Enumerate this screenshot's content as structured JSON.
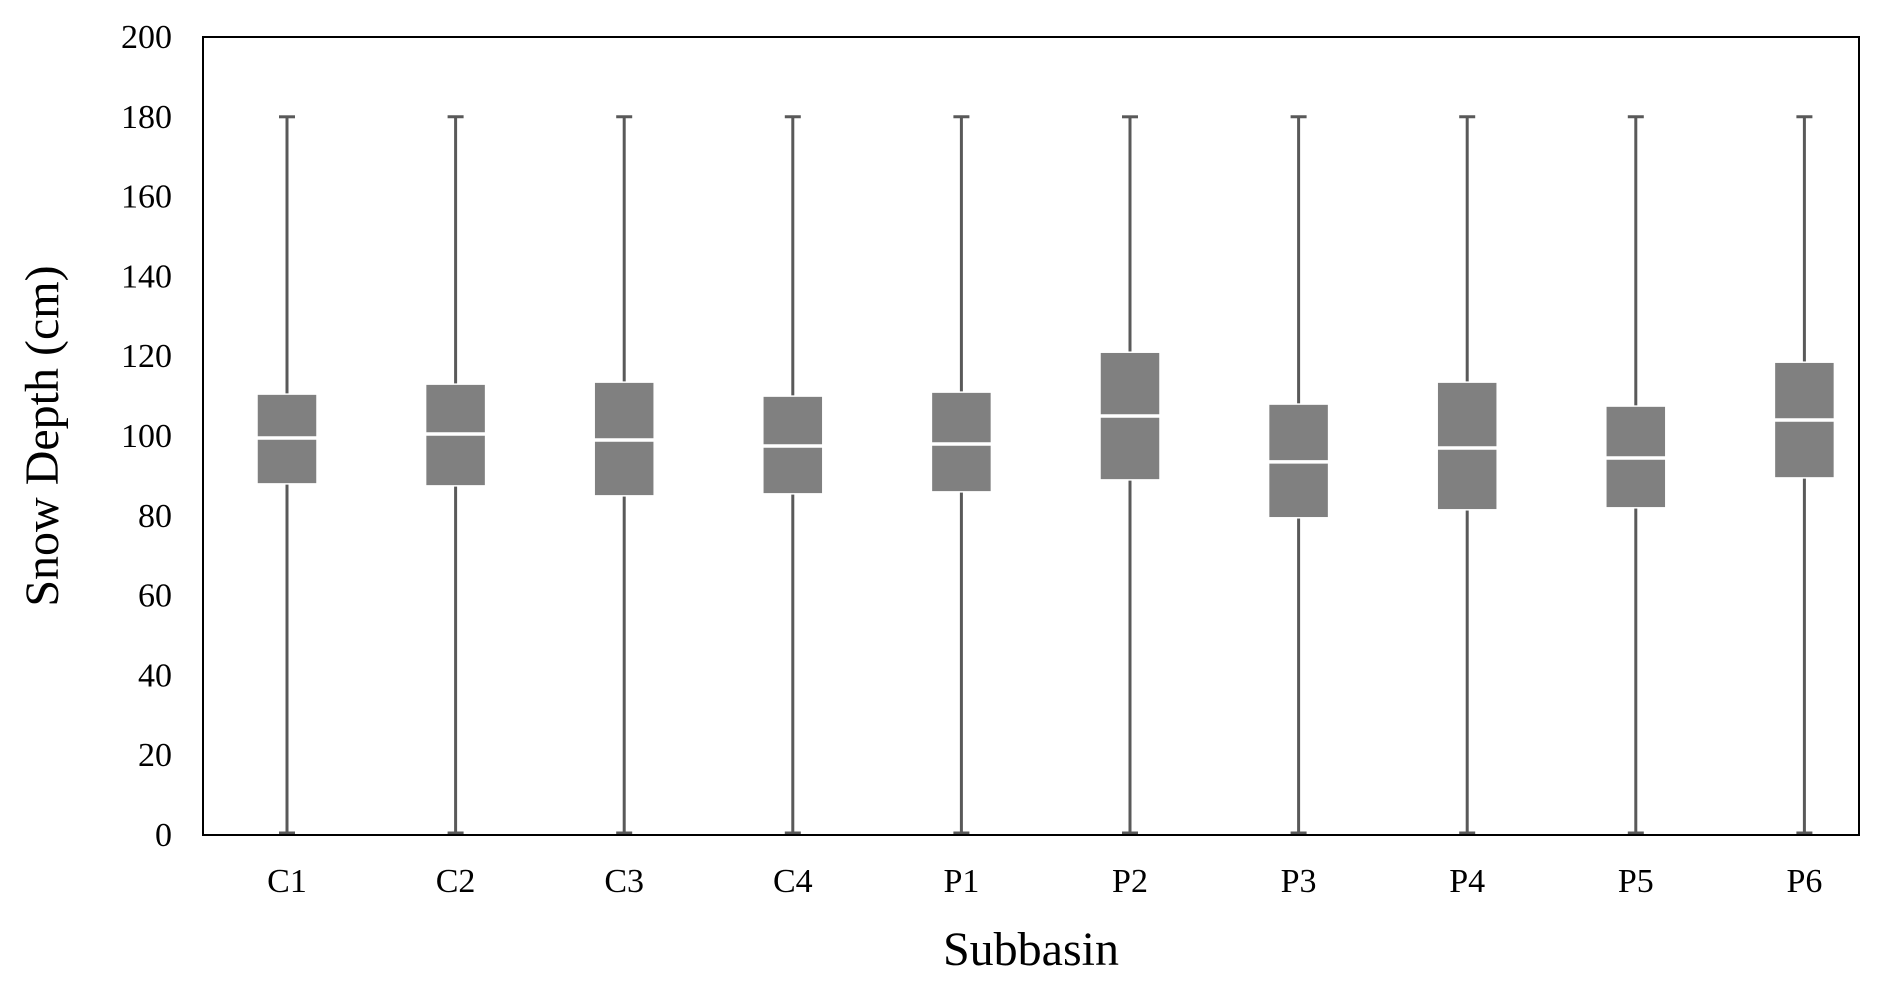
{
  "chart_data": {
    "type": "box",
    "title": "",
    "xlabel": "Subbasin",
    "ylabel": "Snow Depth (cm)",
    "ylim": [
      0,
      200
    ],
    "yticks": [
      0,
      20,
      40,
      60,
      80,
      100,
      120,
      140,
      160,
      180,
      200
    ],
    "grid": false,
    "legend": "none",
    "colors": {
      "box": "#808080",
      "whisker": "#595959",
      "median": "#ffffff",
      "frame": "#000000"
    },
    "categories": [
      "C1",
      "C2",
      "C3",
      "C4",
      "P1",
      "P2",
      "P3",
      "P4",
      "P5",
      "P6"
    ],
    "boxes": [
      {
        "min": 0.5,
        "q1": 88.0,
        "median": 99.5,
        "q3": 110.5,
        "max": 180
      },
      {
        "min": 0.5,
        "q1": 87.5,
        "median": 100.5,
        "q3": 113.0,
        "max": 180
      },
      {
        "min": 0.5,
        "q1": 85.0,
        "median": 99.0,
        "q3": 113.5,
        "max": 180
      },
      {
        "min": 0.5,
        "q1": 85.5,
        "median": 97.5,
        "q3": 110.0,
        "max": 180
      },
      {
        "min": 0.5,
        "q1": 86.0,
        "median": 98.0,
        "q3": 111.0,
        "max": 180
      },
      {
        "min": 0.5,
        "q1": 89.0,
        "median": 105.0,
        "q3": 121.0,
        "max": 180
      },
      {
        "min": 0.5,
        "q1": 79.5,
        "median": 93.5,
        "q3": 108.0,
        "max": 180
      },
      {
        "min": 0.5,
        "q1": 81.5,
        "median": 97.0,
        "q3": 113.5,
        "max": 180
      },
      {
        "min": 0.5,
        "q1": 82.0,
        "median": 94.5,
        "q3": 107.5,
        "max": 180
      },
      {
        "min": 0.5,
        "q1": 89.5,
        "median": 104.0,
        "q3": 118.5,
        "max": 180
      }
    ]
  }
}
